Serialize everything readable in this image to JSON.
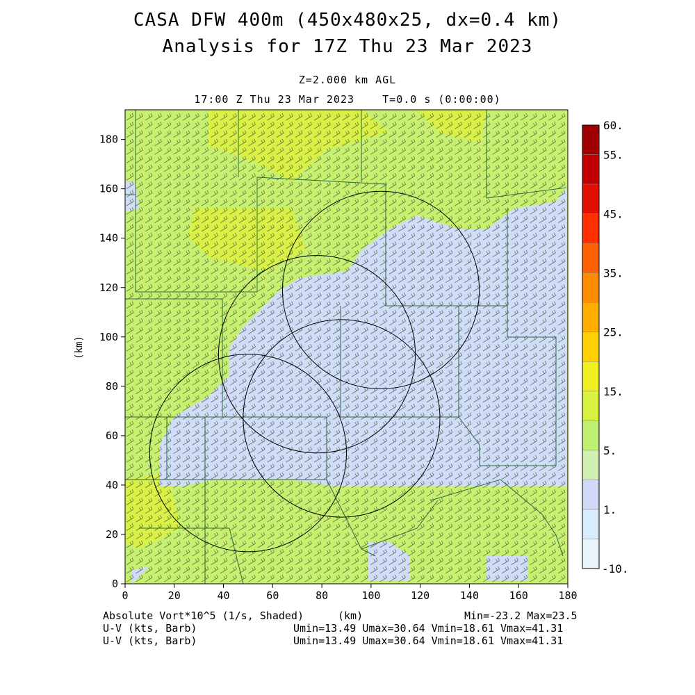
{
  "title_line1": "CASA DFW 400m (450x480x25, dx=0.4 km)",
  "title_line2": "Analysis for 17Z Thu 23 Mar 2023",
  "level_label": "Z=2.000 km AGL",
  "time_label": "17:00 Z Thu 23 Mar 2023    T=0.0 s (0:00:00)",
  "x_axis": {
    "label": "(km)",
    "ticks": [
      "0",
      "20",
      "40",
      "60",
      "80",
      "100",
      "120",
      "140",
      "160",
      "180"
    ],
    "range": [
      0,
      180
    ]
  },
  "y_axis": {
    "label": "(km)",
    "ticks": [
      "0",
      "20",
      "40",
      "60",
      "80",
      "100",
      "120",
      "140",
      "160",
      "180"
    ],
    "range": [
      0,
      192
    ]
  },
  "colorbar": {
    "labels": [
      "60.",
      "55.",
      "45.",
      "35.",
      "25.",
      "15.",
      "5.",
      "1.",
      "-10."
    ],
    "colors": [
      "#a00000",
      "#c00000",
      "#e01000",
      "#ff3000",
      "#ff6000",
      "#ff8c00",
      "#ffad00",
      "#ffd000",
      "#f0f020",
      "#d8f040",
      "#bdf070",
      "#d0f0b0",
      "#d0d8f8",
      "#d8ecfc",
      "#e8f6fc"
    ]
  },
  "footer": {
    "left1": "Absolute Vort*10^5 (1/s, Shaded)",
    "left2": "U-V (kts, Barb)",
    "left3": "U-V (kts, Barb)",
    "xunit": "(km)",
    "minmax": "Min=-23.2 Max=23.5",
    "uv1": "Umin=13.49 Umax=30.64 Vmin=18.61 Vmax=41.31",
    "uv2": "Umin=13.49 Umax=30.64 Vmin=18.61 Vmax=41.31"
  },
  "field": {
    "green_base": "#c8f070",
    "green_bright": "#dcf040",
    "blue_region": "#d0dcf8",
    "border_color": "#2a6a40"
  },
  "radars": [
    {
      "center_km": [
        104,
        119
      ],
      "radius_km": 40
    },
    {
      "center_km": [
        78,
        93
      ],
      "radius_km": 40
    },
    {
      "center_km": [
        88,
        67
      ],
      "radius_km": 40
    },
    {
      "center_km": [
        50,
        53
      ],
      "radius_km": 40
    }
  ]
}
